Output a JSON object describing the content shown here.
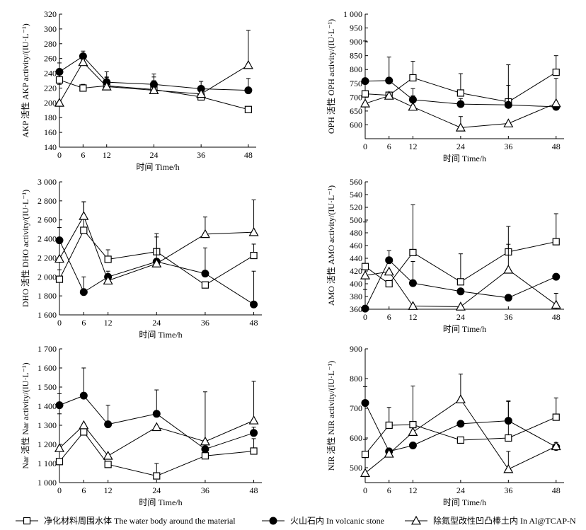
{
  "legend": [
    {
      "marker": "square",
      "label": "净化材料周围水体 The water body around the material"
    },
    {
      "marker": "circle",
      "label": "火山石内 In volcanic stone"
    },
    {
      "marker": "triangle",
      "label": "除氮型改性凹凸棒土内 In Al@TCAP-N"
    }
  ],
  "chart_data": [
    {
      "type": "line",
      "ylabel": "AKP 活性 AKP activity/(IU·L⁻¹)",
      "xlabel": "时间 Time/h",
      "x": [
        0,
        6,
        12,
        24,
        36,
        48
      ],
      "ylim": [
        140,
        320
      ],
      "yticks": [
        140,
        160,
        180,
        200,
        220,
        240,
        260,
        280,
        300,
        320
      ],
      "ytick_labels": [
        "140",
        "160",
        "180",
        "200",
        "220",
        "240",
        "260",
        "280",
        "300",
        "320"
      ],
      "series": [
        {
          "marker": "square",
          "values": [
            231,
            220,
            223,
            218,
            208,
            191
          ],
          "err": [
            12,
            5,
            12,
            12,
            5,
            0
          ]
        },
        {
          "marker": "circle",
          "values": [
            242,
            263,
            228,
            225,
            219,
            217
          ],
          "err": [
            12,
            7,
            14,
            14,
            10,
            16
          ]
        },
        {
          "marker": "triangle",
          "values": [
            200,
            255,
            222,
            217,
            212,
            251
          ],
          "err": [
            25,
            10,
            12,
            18,
            10,
            47
          ]
        }
      ]
    },
    {
      "type": "line",
      "ylabel": "OPH 活性 OPH activity/(IU·L⁻¹)",
      "xlabel": "时间 Time/h",
      "x": [
        0,
        6,
        12,
        24,
        36,
        48
      ],
      "ylim": [
        550,
        1000
      ],
      "yticks": [
        600,
        650,
        700,
        750,
        800,
        850,
        900,
        950,
        1000
      ],
      "ytick_labels": [
        "600",
        "650",
        "700",
        "750",
        "800",
        "850",
        "900",
        "950",
        "1 000"
      ],
      "series": [
        {
          "marker": "square",
          "values": [
            712,
            707,
            770,
            715,
            683,
            790
          ],
          "err": [
            0,
            0,
            60,
            70,
            60,
            60
          ]
        },
        {
          "marker": "circle",
          "values": [
            758,
            760,
            691,
            675,
            672,
            665
          ],
          "err": [
            145,
            85,
            40,
            20,
            145,
            0
          ]
        },
        {
          "marker": "triangle",
          "values": [
            677,
            705,
            665,
            590,
            605,
            678
          ],
          "err": [
            0,
            0,
            40,
            40,
            0,
            90
          ]
        }
      ]
    },
    {
      "type": "line",
      "ylabel": "DHO 活性 DHO activity/(IU·L⁻¹)",
      "xlabel": "时间 Time/h",
      "x": [
        0,
        6,
        12,
        24,
        36,
        48
      ],
      "ylim": [
        1600,
        3000
      ],
      "yticks": [
        1600,
        1800,
        2000,
        2200,
        2400,
        2600,
        2800,
        3000
      ],
      "ytick_labels": [
        "1 600",
        "1 800",
        "2 000",
        "2 200",
        "2 400",
        "2 600",
        "2 800",
        "3 000"
      ],
      "series": [
        {
          "marker": "square",
          "values": [
            1975,
            2490,
            2185,
            2265,
            1915,
            2225
          ],
          "err": [
            100,
            300,
            100,
            190,
            0,
            120
          ]
        },
        {
          "marker": "circle",
          "values": [
            2385,
            1840,
            2000,
            2160,
            2035,
            1710
          ],
          "err": [
            135,
            160,
            60,
            260,
            270,
            350
          ]
        },
        {
          "marker": "triangle",
          "values": [
            2190,
            2640,
            1960,
            2140,
            2450,
            2470
          ],
          "err": [
            0,
            150,
            0,
            0,
            180,
            340
          ]
        }
      ]
    },
    {
      "type": "line",
      "ylabel": "AMO 活性 AMO activity/(IU·L⁻¹)",
      "xlabel": "时间 Time/h",
      "x": [
        0,
        6,
        12,
        24,
        36,
        48
      ],
      "ylim": [
        360,
        560
      ],
      "yticks": [
        360,
        380,
        400,
        420,
        440,
        460,
        480,
        500,
        520,
        540,
        560
      ],
      "ytick_labels": [
        "360",
        "380",
        "400",
        "420",
        "440",
        "460",
        "480",
        "500",
        "520",
        "540",
        "560"
      ],
      "series": [
        {
          "marker": "square",
          "values": [
            427,
            400,
            449,
            403,
            450,
            466
          ],
          "err": [
            70,
            0,
            75,
            44,
            40,
            44
          ]
        },
        {
          "marker": "circle",
          "values": [
            361,
            437,
            401,
            388,
            378,
            411
          ],
          "err": [
            30,
            15,
            34,
            0,
            0,
            0
          ]
        },
        {
          "marker": "triangle",
          "values": [
            413,
            419,
            365,
            364,
            422,
            367
          ],
          "err": [
            0,
            0,
            0,
            0,
            40,
            18
          ]
        }
      ]
    },
    {
      "type": "line",
      "ylabel": "Nar 活性 Nar activity/(IU·L⁻¹)",
      "xlabel": "时间 Time/h",
      "x": [
        0,
        6,
        12,
        24,
        36,
        48
      ],
      "ylim": [
        1000,
        1700
      ],
      "yticks": [
        1000,
        1100,
        1200,
        1300,
        1400,
        1500,
        1600,
        1700
      ],
      "ytick_labels": [
        "1 000",
        "1 100",
        "1 200",
        "1 300",
        "1 400",
        "1 500",
        "1 600",
        "1 700"
      ],
      "series": [
        {
          "marker": "square",
          "values": [
            1110,
            1265,
            1095,
            1035,
            1140,
            1165
          ],
          "err": [
            0,
            0,
            0,
            65,
            0,
            65
          ]
        },
        {
          "marker": "circle",
          "values": [
            1405,
            1455,
            1305,
            1360,
            1175,
            1260
          ],
          "err": [
            60,
            145,
            100,
            125,
            0,
            30
          ]
        },
        {
          "marker": "triangle",
          "values": [
            1180,
            1300,
            1140,
            1290,
            1215,
            1325
          ],
          "err": [
            180,
            0,
            0,
            0,
            260,
            205
          ]
        }
      ]
    },
    {
      "type": "line",
      "ylabel": "NIR 活性 NIR activity/(IU·L⁻¹)",
      "xlabel": "时间 Time/h",
      "x": [
        0,
        6,
        12,
        24,
        36,
        48
      ],
      "ylim": [
        450,
        900
      ],
      "yticks": [
        500,
        600,
        700,
        800,
        900
      ],
      "ytick_labels": [
        "500",
        "600",
        "700",
        "800",
        "900"
      ],
      "series": [
        {
          "marker": "square",
          "values": [
            545,
            643,
            645,
            593,
            600,
            670
          ],
          "err": [
            50,
            60,
            130,
            0,
            125,
            65
          ]
        },
        {
          "marker": "circle",
          "values": [
            718,
            555,
            575,
            648,
            658,
            570
          ],
          "err": [
            55,
            0,
            0,
            0,
            65,
            15
          ]
        },
        {
          "marker": "triangle",
          "values": [
            482,
            547,
            620,
            730,
            495,
            572
          ],
          "err": [
            0,
            0,
            0,
            85,
            60,
            0
          ]
        }
      ]
    }
  ]
}
